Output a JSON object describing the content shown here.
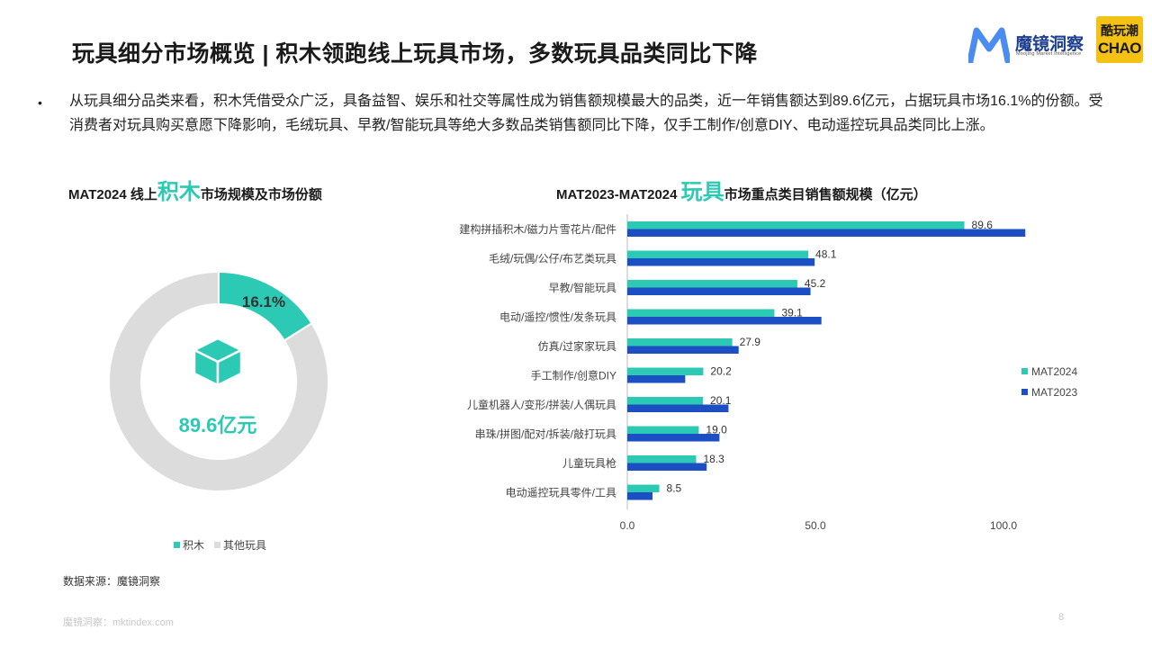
{
  "header": {
    "title": "玩具细分市场概览 | 积木领跑线上玩具市场，多数玩具品类同比下降",
    "logo_text": "魔镜洞察",
    "logo_sub": "Moojing Market Intelligence",
    "partner_logo_top": "酷玩潮",
    "partner_logo_bottom": "CHAO"
  },
  "bullet": {
    "text": "从玩具细分品类来看，积木凭借受众广泛，具备益智、娱乐和社交等属性成为销售额规模最大的品类，近一年销售额达到89.6亿元，占据玩具市场16.1%的份额。受消费者对玩具购买意愿下降影响，毛绒玩具、早教/智能玩具等绝大多数品类销售额同比下降，仅手工制作/创意DIY、电动遥控玩具品类同比上涨。"
  },
  "left_chart_title": {
    "prefix": "MAT2024 线上",
    "highlight": "积木",
    "suffix": "市场规模及市场份额"
  },
  "right_chart_title": {
    "prefix": "MAT2023-MAT2024 ",
    "highlight": "玩具",
    "suffix": "市场重点类目销售额规模（亿元）"
  },
  "colors": {
    "teal": "#2cc9b4",
    "blue": "#1d4fc4",
    "grey": "#dcdcdc"
  },
  "chart_data": [
    {
      "type": "pie",
      "labels": [
        "积木",
        "其他玩具"
      ],
      "values": [
        16.1,
        83.9
      ],
      "slice_label": "16.1%",
      "center_label": "89.6亿元",
      "center_icon": "cube-icon",
      "legend_placement": "bottom"
    },
    {
      "type": "bar",
      "orientation": "horizontal",
      "categories": [
        "建构拼插积木/磁力片雪花片/配件",
        "毛绒/玩偶/公仔/布艺类玩具",
        "早教/智能玩具",
        "电动/遥控/惯性/发条玩具",
        "仿真/过家家玩具",
        "手工制作/创意DIY",
        "儿童机器人/变形/拼装/人偶玩具",
        "串珠/拼图/配对/拆装/敲打玩具",
        "儿童玩具枪",
        "电动遥控玩具零件/工具"
      ],
      "series": [
        {
          "name": "MAT2024",
          "values": [
            89.6,
            48.1,
            45.2,
            39.1,
            27.9,
            20.2,
            20.1,
            19.0,
            18.3,
            8.5
          ]
        },
        {
          "name": "MAT2023",
          "values": [
            105.8,
            49.8,
            48.7,
            51.6,
            29.6,
            15.4,
            26.9,
            24.5,
            21.1,
            6.7
          ]
        }
      ],
      "data_labels": [
        "89.6",
        "48.1",
        "45.2",
        "39.1",
        "27.9",
        "20.2",
        "20.1",
        "19.0",
        "18.3",
        "8.5"
      ],
      "x_ticks": [
        "0.0",
        "50.0",
        "100.0"
      ],
      "xlim": [
        0,
        120
      ],
      "legend_placement": "right"
    }
  ],
  "source": "数据来源：魔镜洞察",
  "footer": "魔镜洞察：mktindex.com",
  "page_number": "8"
}
